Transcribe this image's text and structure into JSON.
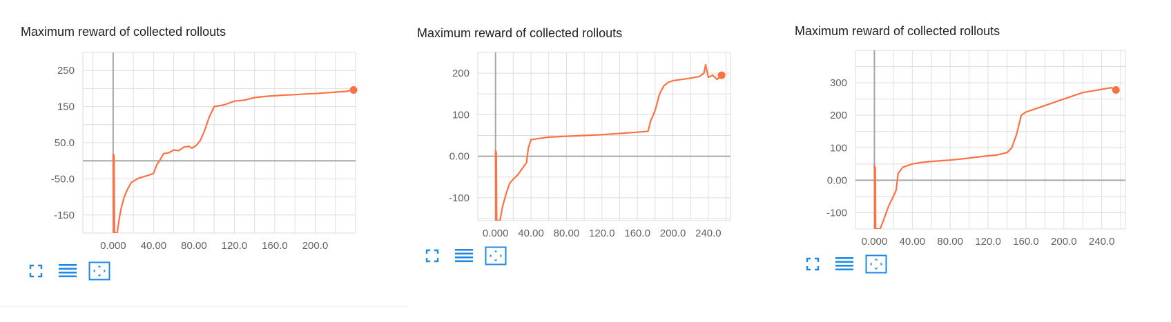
{
  "colors": {
    "series": "#ff7043",
    "axis": "#a6a6a6",
    "grid": "#dedede",
    "icon": "#1e88e5"
  },
  "toolbar": {
    "icons": [
      "fullscreen-icon",
      "list-icon",
      "fit-domain-icon"
    ]
  },
  "chart_data": [
    {
      "type": "line",
      "title": "Maximum reward of collected rollouts",
      "xlim": [
        -30,
        240
      ],
      "ylim": [
        -200,
        300
      ],
      "x_ticks": [
        0,
        40,
        80,
        120,
        160,
        200
      ],
      "x_tick_labels": [
        "0.000",
        "40.00",
        "80.00",
        "120.0",
        "160.0",
        "200.0"
      ],
      "y_ticks": [
        250,
        150,
        50,
        -50,
        -150
      ],
      "y_tick_labels": [
        "250",
        "150",
        "50.0",
        "-50.0",
        "-150"
      ],
      "grid": true,
      "series": [
        {
          "x": [
            0,
            0.5,
            0.9,
            1.3,
            2,
            4,
            6,
            8,
            11,
            14,
            18,
            25,
            35,
            40,
            43,
            47,
            50,
            55,
            60,
            65,
            70,
            75,
            78,
            82,
            86,
            90,
            95,
            100,
            110,
            120,
            130,
            140,
            150,
            160,
            170,
            180,
            190,
            200,
            210,
            220,
            230,
            238
          ],
          "y": [
            20,
            -200,
            15,
            -200,
            -200,
            -200,
            -160,
            -130,
            -100,
            -80,
            -60,
            -48,
            -40,
            -35,
            -12,
            5,
            20,
            22,
            30,
            28,
            38,
            40,
            35,
            42,
            55,
            80,
            120,
            150,
            155,
            165,
            168,
            175,
            178,
            180,
            182,
            183,
            185,
            186,
            188,
            190,
            192,
            196
          ]
        }
      ]
    },
    {
      "type": "line",
      "title": "Maximum reward of collected rollouts",
      "xlim": [
        -20,
        265
      ],
      "ylim": [
        -155,
        250
      ],
      "x_ticks": [
        0,
        40,
        80,
        120,
        160,
        200,
        240
      ],
      "x_tick_labels": [
        "0.000",
        "40.00",
        "80.00",
        "120.0",
        "160.0",
        "200.0",
        "240.0"
      ],
      "y_ticks": [
        200,
        100,
        0,
        -100
      ],
      "y_tick_labels": [
        "200",
        "100",
        "0.00",
        "-100"
      ],
      "grid": true,
      "series": [
        {
          "x": [
            0,
            0.5,
            0.9,
            1.3,
            3,
            5,
            8,
            12,
            16,
            20,
            25,
            30,
            35,
            37,
            40,
            50,
            60,
            80,
            100,
            120,
            140,
            160,
            172,
            175,
            180,
            185,
            190,
            195,
            200,
            210,
            220,
            225,
            230,
            235,
            237,
            240,
            245,
            250,
            255
          ],
          "y": [
            15,
            -155,
            10,
            -155,
            -155,
            -155,
            -120,
            -90,
            -65,
            -55,
            -45,
            -30,
            -15,
            20,
            40,
            43,
            46,
            48,
            50,
            52,
            55,
            58,
            60,
            85,
            110,
            150,
            170,
            178,
            182,
            185,
            188,
            190,
            192,
            200,
            220,
            190,
            195,
            185,
            195
          ]
        }
      ]
    },
    {
      "type": "line",
      "title": "Maximum reward of collected rollouts",
      "xlim": [
        -20,
        265
      ],
      "ylim": [
        -150,
        400
      ],
      "x_ticks": [
        0,
        40,
        80,
        120,
        160,
        200,
        240
      ],
      "x_tick_labels": [
        "0.000",
        "40.00",
        "80.00",
        "120.0",
        "160.0",
        "200.0",
        "240.0"
      ],
      "y_ticks": [
        300,
        200,
        100,
        0,
        -100
      ],
      "y_tick_labels": [
        "300",
        "200",
        "100",
        "0.00",
        "-100"
      ],
      "grid": true,
      "series": [
        {
          "x": [
            0,
            0.5,
            0.9,
            1.3,
            3,
            6,
            10,
            15,
            20,
            23,
            25,
            30,
            40,
            50,
            60,
            70,
            80,
            90,
            100,
            110,
            120,
            130,
            140,
            145,
            150,
            155,
            160,
            170,
            180,
            190,
            200,
            210,
            220,
            230,
            240,
            250,
            255
          ],
          "y": [
            50,
            -150,
            40,
            -150,
            -150,
            -150,
            -120,
            -80,
            -50,
            -30,
            20,
            40,
            50,
            55,
            58,
            60,
            62,
            65,
            68,
            72,
            75,
            78,
            85,
            100,
            140,
            200,
            210,
            220,
            230,
            240,
            250,
            260,
            270,
            275,
            280,
            285,
            278
          ]
        }
      ]
    }
  ]
}
